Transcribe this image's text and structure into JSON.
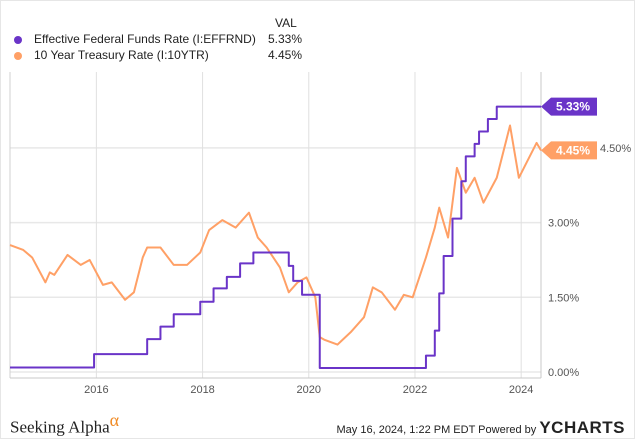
{
  "legend": {
    "header": "VAL",
    "items": [
      {
        "label": "Effective Federal Funds Rate (I:EFFRND)",
        "value": "5.33%",
        "color": "#6a34c8"
      },
      {
        "label": "10 Year Treasury Rate (I:10YTR)",
        "value": "4.45%",
        "color": "#ffa066"
      }
    ]
  },
  "footer": {
    "logo": "Seeking Alpha",
    "logo_symbol": "α",
    "timestamp": "May 16, 2024, 1:22 PM EDT",
    "powered_by": "Powered by",
    "brand": "YCHARTS"
  },
  "chart_data": {
    "type": "line",
    "x_range": [
      "2014-05",
      "2024-05"
    ],
    "xticks": [
      "2016",
      "2018",
      "2020",
      "2022",
      "2024"
    ],
    "ylim": [
      0,
      5.6
    ],
    "yticks": [
      "0.00%",
      "1.50%",
      "3.00%",
      "4.50%"
    ],
    "ytick_values": [
      0,
      1.5,
      3,
      4.5
    ],
    "y_axis_position": "right",
    "grid": true,
    "legend_position": "top-left",
    "series": [
      {
        "name": "Effective Federal Funds Rate (I:EFFRND)",
        "color": "#6a34c8",
        "step": true,
        "end_label": "5.33%",
        "points": [
          [
            "2014-05",
            0.09
          ],
          [
            "2015-12",
            0.36
          ],
          [
            "2016-12",
            0.66
          ],
          [
            "2017-03",
            0.91
          ],
          [
            "2017-06",
            1.16
          ],
          [
            "2017-12",
            1.41
          ],
          [
            "2018-03",
            1.68
          ],
          [
            "2018-06",
            1.91
          ],
          [
            "2018-09",
            2.18
          ],
          [
            "2018-12",
            2.4
          ],
          [
            "2019-08",
            2.13
          ],
          [
            "2019-09",
            1.83
          ],
          [
            "2019-11",
            1.55
          ],
          [
            "2020-03",
            0.08
          ],
          [
            "2022-03",
            0.33
          ],
          [
            "2022-05",
            0.83
          ],
          [
            "2022-06",
            1.58
          ],
          [
            "2022-07",
            2.33
          ],
          [
            "2022-09",
            3.08
          ],
          [
            "2022-11",
            3.83
          ],
          [
            "2022-12",
            4.33
          ],
          [
            "2023-02",
            4.58
          ],
          [
            "2023-03",
            4.83
          ],
          [
            "2023-05",
            5.08
          ],
          [
            "2023-07",
            5.33
          ],
          [
            "2024-05",
            5.33
          ]
        ]
      },
      {
        "name": "10 Year Treasury Rate (I:10YTR)",
        "color": "#ffa066",
        "step": false,
        "end_label": "4.45%",
        "points": [
          [
            "2014-05",
            2.55
          ],
          [
            "2014-08",
            2.45
          ],
          [
            "2014-10",
            2.3
          ],
          [
            "2015-01",
            1.8
          ],
          [
            "2015-02",
            2.0
          ],
          [
            "2015-03",
            1.95
          ],
          [
            "2015-06",
            2.35
          ],
          [
            "2015-09",
            2.15
          ],
          [
            "2015-11",
            2.25
          ],
          [
            "2016-02",
            1.75
          ],
          [
            "2016-04",
            1.8
          ],
          [
            "2016-07",
            1.45
          ],
          [
            "2016-09",
            1.6
          ],
          [
            "2016-11",
            2.3
          ],
          [
            "2016-12",
            2.5
          ],
          [
            "2017-03",
            2.5
          ],
          [
            "2017-06",
            2.15
          ],
          [
            "2017-09",
            2.15
          ],
          [
            "2017-12",
            2.4
          ],
          [
            "2018-02",
            2.85
          ],
          [
            "2018-05",
            3.05
          ],
          [
            "2018-08",
            2.9
          ],
          [
            "2018-11",
            3.2
          ],
          [
            "2019-01",
            2.7
          ],
          [
            "2019-03",
            2.5
          ],
          [
            "2019-06",
            2.1
          ],
          [
            "2019-08",
            1.6
          ],
          [
            "2019-10",
            1.8
          ],
          [
            "2019-12",
            1.9
          ],
          [
            "2020-02",
            1.5
          ],
          [
            "2020-03",
            0.7
          ],
          [
            "2020-04",
            0.65
          ],
          [
            "2020-07",
            0.55
          ],
          [
            "2020-10",
            0.8
          ],
          [
            "2021-01",
            1.1
          ],
          [
            "2021-03",
            1.7
          ],
          [
            "2021-05",
            1.6
          ],
          [
            "2021-08",
            1.25
          ],
          [
            "2021-10",
            1.55
          ],
          [
            "2021-12",
            1.5
          ],
          [
            "2022-03",
            2.3
          ],
          [
            "2022-05",
            2.9
          ],
          [
            "2022-06",
            3.3
          ],
          [
            "2022-08",
            2.7
          ],
          [
            "2022-10",
            4.1
          ],
          [
            "2022-12",
            3.6
          ],
          [
            "2023-02",
            3.9
          ],
          [
            "2023-04",
            3.4
          ],
          [
            "2023-07",
            3.9
          ],
          [
            "2023-10",
            4.95
          ],
          [
            "2023-12",
            3.9
          ],
          [
            "2024-02",
            4.25
          ],
          [
            "2024-04",
            4.6
          ],
          [
            "2024-05",
            4.45
          ]
        ]
      }
    ]
  }
}
